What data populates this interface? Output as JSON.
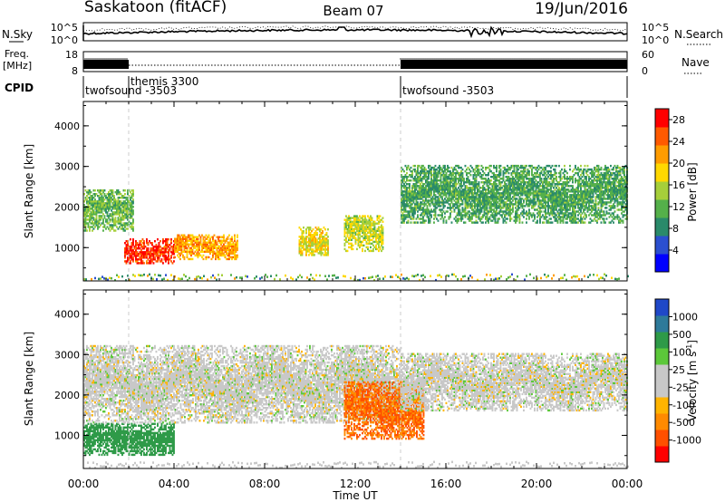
{
  "header": {
    "station": "Saskatoon (fitACF)",
    "beam": "Beam 07",
    "date": "19/Jun/2016"
  },
  "noise_strip": {
    "left_label": "N.Sky",
    "right_label": "N.Search",
    "left_ticks": [
      "10^5",
      "10^0"
    ],
    "right_ticks": [
      "10^5",
      "10^0"
    ]
  },
  "freq_strip": {
    "left_label_1": "Freq.",
    "left_label_2": "[MHz]",
    "right_label": "Nave",
    "left_ticks": [
      "18",
      "8"
    ],
    "right_ticks": [
      "60",
      "0"
    ]
  },
  "cpid": {
    "label": "CPID",
    "segments": [
      {
        "name": "twofsound -3503",
        "start_h": 0.0
      },
      {
        "name": "themis 3300",
        "start_h": 2.0
      },
      {
        "name": "twofsound -3503",
        "start_h": 14.0
      }
    ]
  },
  "colors": {
    "power_scale": [
      "#0000ff",
      "#2b4fcf",
      "#2a8a6a",
      "#55b04a",
      "#a6cf3a",
      "#ffd800",
      "#ff9c00",
      "#ff5a00",
      "#ff0000"
    ],
    "velocity_scale": [
      "#ff0000",
      "#ff5000",
      "#ff8a00",
      "#ffb400",
      "#c8c8c8",
      "#c8c8c8",
      "#5cc83a",
      "#2e9a48",
      "#2e7a9a",
      "#1f48c8"
    ]
  },
  "chart_data": [
    {
      "type": "heatmap",
      "title": "Power",
      "xlabel": "Time UT",
      "ylabel": "Slant Range [km]",
      "xlim": [
        0,
        24
      ],
      "ylim": [
        180,
        4600
      ],
      "x_ticks": [
        "00:00",
        "04:00",
        "08:00",
        "12:00",
        "16:00",
        "20:00",
        "00:00"
      ],
      "y_ticks": [
        1000,
        2000,
        3000,
        4000
      ],
      "colorbar": {
        "label": "Power [dB]",
        "ticks": [
          4,
          8,
          12,
          16,
          20,
          24,
          28
        ],
        "range": [
          0,
          30
        ]
      },
      "echo_regions": [
        {
          "t_start": 0.0,
          "t_end": 2.2,
          "r_low": 1400,
          "r_high": 2400,
          "level": 12
        },
        {
          "t_start": 1.8,
          "t_end": 4.0,
          "r_low": 600,
          "r_high": 1200,
          "level": 28
        },
        {
          "t_start": 4.0,
          "t_end": 6.8,
          "r_low": 700,
          "r_high": 1300,
          "level": 22
        },
        {
          "t_start": 9.5,
          "t_end": 10.8,
          "r_low": 800,
          "r_high": 1500,
          "level": 18
        },
        {
          "t_start": 11.5,
          "t_end": 13.2,
          "r_low": 900,
          "r_high": 1800,
          "level": 16
        },
        {
          "t_start": 14.0,
          "t_end": 24.0,
          "r_low": 1600,
          "r_high": 3000,
          "level": 10
        }
      ]
    },
    {
      "type": "heatmap",
      "title": "Velocity",
      "xlabel": "Time UT",
      "ylabel": "Slant Range [km]",
      "xlim": [
        0,
        24
      ],
      "ylim": [
        180,
        4600
      ],
      "x_ticks": [
        "00:00",
        "04:00",
        "08:00",
        "12:00",
        "16:00",
        "20:00",
        "00:00"
      ],
      "y_ticks": [
        1000,
        2000,
        3000,
        4000
      ],
      "colorbar": {
        "label": "Velocity [m s^-1]",
        "ticks": [
          "1000",
          "500",
          "100",
          "25",
          "-25",
          "-100",
          "-500",
          "-1000"
        ]
      },
      "echo_regions": [
        {
          "t_start": 0.0,
          "t_end": 4.0,
          "r_low": 500,
          "r_high": 1300,
          "level": 100
        },
        {
          "t_start": 0.0,
          "t_end": 14.0,
          "r_low": 1300,
          "r_high": 3200,
          "level": 0
        },
        {
          "t_start": 11.5,
          "t_end": 15.0,
          "r_low": 900,
          "r_high": 2300,
          "level": -300
        },
        {
          "t_start": 14.0,
          "t_end": 24.0,
          "r_low": 1600,
          "r_high": 3000,
          "level": 0
        }
      ]
    }
  ]
}
